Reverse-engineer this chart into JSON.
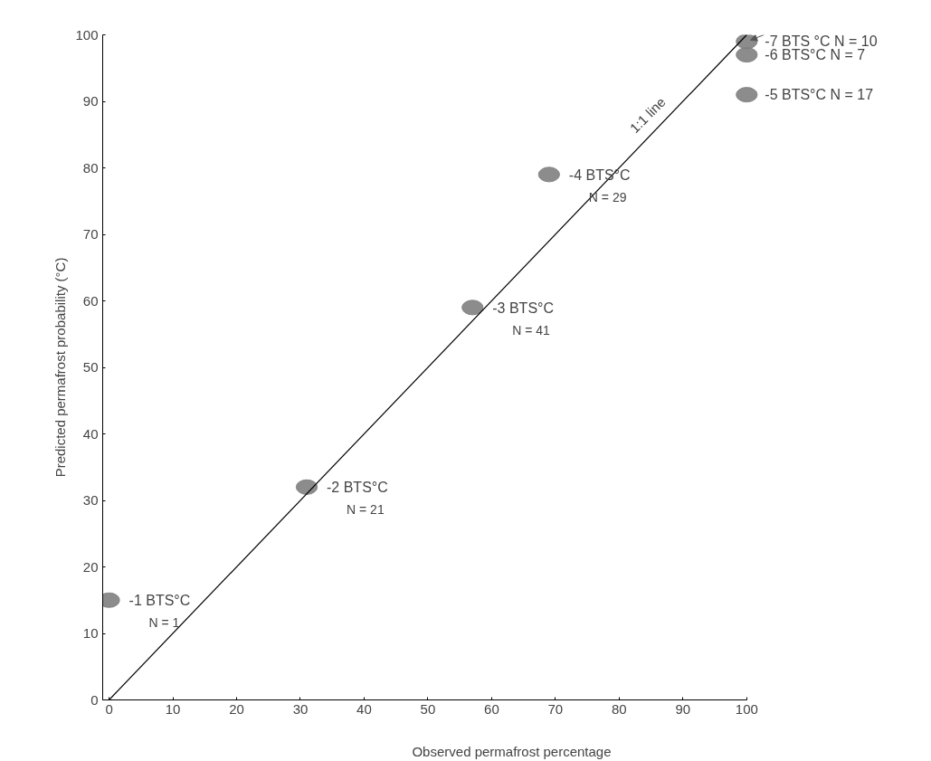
{
  "chart_data": {
    "type": "scatter",
    "xlabel": "Observed permafrost percentage",
    "ylabel": "Predicted permafrost probability (°C)",
    "xlim": [
      -1,
      100
    ],
    "ylim": [
      0,
      100
    ],
    "xticks": [
      0,
      10,
      20,
      30,
      40,
      50,
      60,
      70,
      80,
      90,
      100
    ],
    "yticks": [
      0,
      10,
      20,
      30,
      40,
      50,
      60,
      70,
      80,
      90,
      100
    ],
    "grid": false,
    "marker": "circle",
    "series": [
      {
        "type": "scatter",
        "color": "#7f7f7f",
        "x": [
          0,
          31,
          57,
          69,
          100,
          100,
          100
        ],
        "values": [
          15,
          32,
          59,
          79,
          91,
          97,
          99
        ]
      },
      {
        "type": "line",
        "color": "#000000",
        "line_style": "solid",
        "marker": "none",
        "x": [
          0,
          100
        ],
        "values": [
          0,
          100
        ]
      }
    ],
    "annotations": [
      {
        "text": "-1 BTS°C\nN = 1",
        "x": 0,
        "y": 15
      },
      {
        "text": "-2 BTS°C\nN = 21",
        "x": 31,
        "y": 32
      },
      {
        "text": "-3 BTS°C\nN = 41",
        "x": 57,
        "y": 59
      },
      {
        "text": "-4 BTS°C\nN = 29",
        "x": 69,
        "y": 79
      },
      {
        "text": "-5 BTS°C  N = 17",
        "x": 100,
        "y": 91
      },
      {
        "text": "-6 BTS°C  N = 7",
        "x": 100,
        "y": 97
      },
      {
        "text": "-7 BTS °C N = 10",
        "x": 100,
        "y": 99
      },
      {
        "text": "1:1 line",
        "x": 84,
        "y": 84
      }
    ]
  }
}
